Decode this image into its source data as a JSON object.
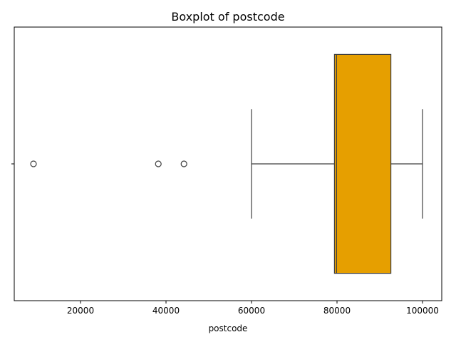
{
  "chart_data": {
    "type": "boxplot",
    "title": "Boxplot of postcode",
    "xlabel": "postcode",
    "ylabel": "",
    "orientation": "horizontal",
    "xlim": [
      4500,
      104500
    ],
    "x_ticks": [
      20000,
      40000,
      60000,
      80000,
      100000
    ],
    "y_ticks": [
      ""
    ],
    "grid": false,
    "box_color": "#e69f00",
    "line_color": "#3f3f3f",
    "series": [
      {
        "whisker_low": 60000,
        "q1": 79400,
        "median": 79900,
        "q3": 92600,
        "whisker_high": 100000,
        "outliers": [
          9000,
          38200,
          44200
        ]
      }
    ]
  }
}
